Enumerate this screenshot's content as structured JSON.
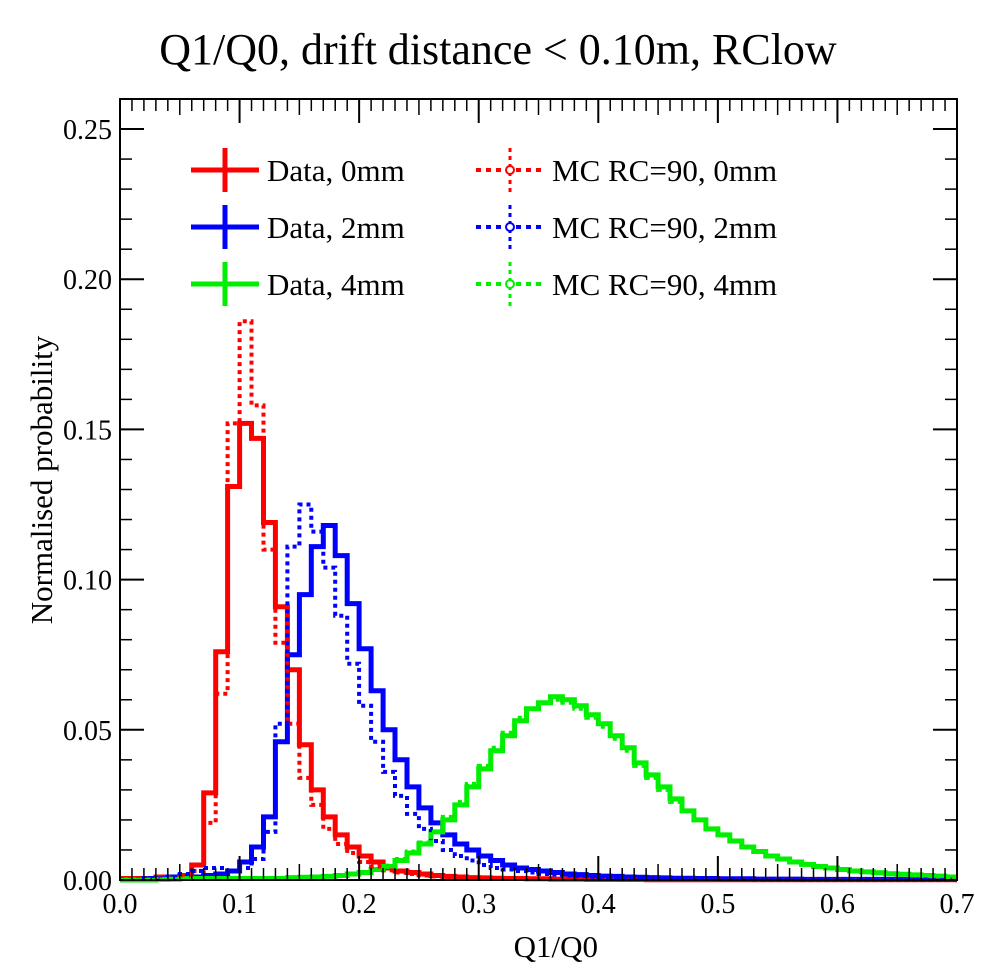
{
  "chart_data": {
    "type": "step-histogram",
    "title": "Q1/Q0, drift distance < 0.10m, RClow",
    "xlabel": "Q1/Q0",
    "ylabel": "Normalised probability",
    "xlim": [
      0.0,
      0.7
    ],
    "ylim": [
      0.0,
      0.26
    ],
    "x_ticks": [
      "0.0",
      "0.1",
      "0.2",
      "0.3",
      "0.4",
      "0.5",
      "0.6",
      "0.7"
    ],
    "y_ticks": [
      "0.00",
      "0.05",
      "0.10",
      "0.15",
      "0.20",
      "0.25"
    ],
    "bin_width": 0.01,
    "grid": false,
    "legend_position": "top",
    "series": [
      {
        "name": "Data, 0mm",
        "style": "solid",
        "color": "#ff0000",
        "values": [
          0.0005,
          0.0005,
          0.0005,
          0.001,
          0.001,
          0.0015,
          0.005,
          0.029,
          0.076,
          0.131,
          0.152,
          0.147,
          0.119,
          0.091,
          0.07,
          0.045,
          0.03,
          0.021,
          0.015,
          0.011,
          0.008,
          0.006,
          0.004,
          0.003,
          0.0025,
          0.002,
          0.0015,
          0.0012,
          0.001,
          0.0008,
          0.0007,
          0.0006,
          0.0005,
          0.0005,
          0.0004,
          0.0004,
          0.0003,
          0.0003,
          0.0003,
          0.0002,
          0.0002,
          0.0002,
          0.0002,
          0.0002,
          0.0001,
          0.0001,
          0.0001,
          0.0001,
          0.0001,
          0.0001,
          0.0001,
          0.0001,
          0.0001,
          0.0001,
          0.0001,
          0.0001,
          0.0001,
          0.0001,
          0.0001,
          0.0001,
          0.0001,
          0.0001,
          0.0001,
          0.0001,
          0.0001,
          0.0001,
          0.0001,
          0.0001,
          0.0001,
          0.0001
        ]
      },
      {
        "name": "Data, 2mm",
        "style": "solid",
        "color": "#0000ff",
        "values": [
          0.0,
          0.0,
          0.0005,
          0.0005,
          0.001,
          0.001,
          0.001,
          0.0015,
          0.002,
          0.003,
          0.006,
          0.011,
          0.021,
          0.046,
          0.075,
          0.095,
          0.111,
          0.118,
          0.108,
          0.092,
          0.077,
          0.063,
          0.05,
          0.04,
          0.031,
          0.024,
          0.019,
          0.015,
          0.012,
          0.01,
          0.008,
          0.0065,
          0.005,
          0.004,
          0.0035,
          0.003,
          0.0025,
          0.002,
          0.0018,
          0.0015,
          0.0013,
          0.0012,
          0.001,
          0.0009,
          0.0008,
          0.0007,
          0.0006,
          0.0006,
          0.0005,
          0.0005,
          0.0004,
          0.0004,
          0.0004,
          0.0003,
          0.0003,
          0.0003,
          0.0003,
          0.0002,
          0.0002,
          0.0002,
          0.0002,
          0.0002,
          0.0002,
          0.0002,
          0.0002,
          0.0002,
          0.0002,
          0.0002,
          0.0002,
          0.0002
        ]
      },
      {
        "name": "Data, 4mm",
        "style": "solid",
        "color": "#00ee00",
        "values": [
          0.0,
          0.0,
          0.0,
          0.0002,
          0.0003,
          0.0005,
          0.0005,
          0.0005,
          0.0005,
          0.0005,
          0.0005,
          0.0005,
          0.0005,
          0.0005,
          0.0008,
          0.0009,
          0.001,
          0.0012,
          0.0015,
          0.002,
          0.0025,
          0.0035,
          0.0045,
          0.0065,
          0.009,
          0.012,
          0.016,
          0.02,
          0.025,
          0.031,
          0.037,
          0.043,
          0.048,
          0.053,
          0.057,
          0.059,
          0.061,
          0.06,
          0.058,
          0.055,
          0.052,
          0.048,
          0.044,
          0.039,
          0.035,
          0.031,
          0.027,
          0.023,
          0.02,
          0.017,
          0.015,
          0.013,
          0.011,
          0.0095,
          0.008,
          0.007,
          0.006,
          0.0052,
          0.0045,
          0.004,
          0.0035,
          0.003,
          0.0027,
          0.0024,
          0.0021,
          0.0019,
          0.0017,
          0.0015,
          0.0013,
          0.001
        ]
      },
      {
        "name": "MC RC=90, 0mm",
        "style": "dotted",
        "color": "#ff0000",
        "values": [
          0.0005,
          0.0005,
          0.0005,
          0.001,
          0.001,
          0.0015,
          0.003,
          0.019,
          0.062,
          0.152,
          0.186,
          0.158,
          0.11,
          0.079,
          0.052,
          0.034,
          0.025,
          0.017,
          0.012,
          0.009,
          0.006,
          0.0045,
          0.0032,
          0.0025,
          0.002,
          0.0015,
          0.0012,
          0.001,
          0.0008,
          0.0006,
          0.0005,
          0.0005,
          0.0004,
          0.0004,
          0.0003,
          0.0003,
          0.0003,
          0.0002,
          0.0002,
          0.0002,
          0.0002,
          0.0002,
          0.0001,
          0.0001,
          0.0001,
          0.0001,
          0.0001,
          0.0001,
          0.0001,
          0.0001,
          0.0001,
          0.0001,
          0.0001,
          0.0001,
          0.0001,
          0.0001,
          0.0001,
          0.0001,
          0.0001,
          0.0001,
          0.0001,
          0.0001,
          0.0001,
          0.0001,
          0.0001,
          0.0001,
          0.0001,
          0.0001,
          0.0001,
          0.0001
        ]
      },
      {
        "name": "MC RC=90, 2mm",
        "style": "dotted",
        "color": "#0000ff",
        "values": [
          0.0,
          0.0,
          0.0005,
          0.0005,
          0.001,
          0.002,
          0.003,
          0.004,
          0.004,
          0.003,
          0.004,
          0.007,
          0.016,
          0.052,
          0.111,
          0.125,
          0.116,
          0.104,
          0.088,
          0.072,
          0.058,
          0.046,
          0.036,
          0.028,
          0.022,
          0.017,
          0.013,
          0.01,
          0.008,
          0.0065,
          0.005,
          0.004,
          0.0035,
          0.003,
          0.0025,
          0.002,
          0.0018,
          0.0015,
          0.0013,
          0.0011,
          0.001,
          0.0009,
          0.0008,
          0.0007,
          0.0006,
          0.0005,
          0.0005,
          0.0004,
          0.0004,
          0.0004,
          0.0003,
          0.0003,
          0.0003,
          0.0003,
          0.0002,
          0.0002,
          0.0002,
          0.0002,
          0.0002,
          0.0002,
          0.0002,
          0.0002,
          0.0002,
          0.0002,
          0.0002,
          0.0002,
          0.0002,
          0.0002,
          0.0002,
          0.0002
        ]
      },
      {
        "name": "MC RC=90, 4mm",
        "style": "dotted",
        "color": "#00ee00",
        "values": [
          0.0,
          0.0,
          0.0,
          0.0002,
          0.0003,
          0.0005,
          0.0005,
          0.0005,
          0.0005,
          0.0005,
          0.0005,
          0.0005,
          0.0005,
          0.0005,
          0.0008,
          0.0009,
          0.001,
          0.0012,
          0.0015,
          0.002,
          0.0025,
          0.0035,
          0.0048,
          0.007,
          0.0095,
          0.0125,
          0.016,
          0.021,
          0.026,
          0.032,
          0.038,
          0.044,
          0.049,
          0.054,
          0.057,
          0.059,
          0.06,
          0.059,
          0.057,
          0.054,
          0.051,
          0.047,
          0.043,
          0.038,
          0.034,
          0.03,
          0.026,
          0.023,
          0.02,
          0.017,
          0.015,
          0.013,
          0.011,
          0.0095,
          0.008,
          0.007,
          0.006,
          0.0052,
          0.0045,
          0.004,
          0.0035,
          0.003,
          0.0027,
          0.0024,
          0.0021,
          0.0019,
          0.0017,
          0.0015,
          0.0013,
          0.001
        ]
      }
    ]
  }
}
